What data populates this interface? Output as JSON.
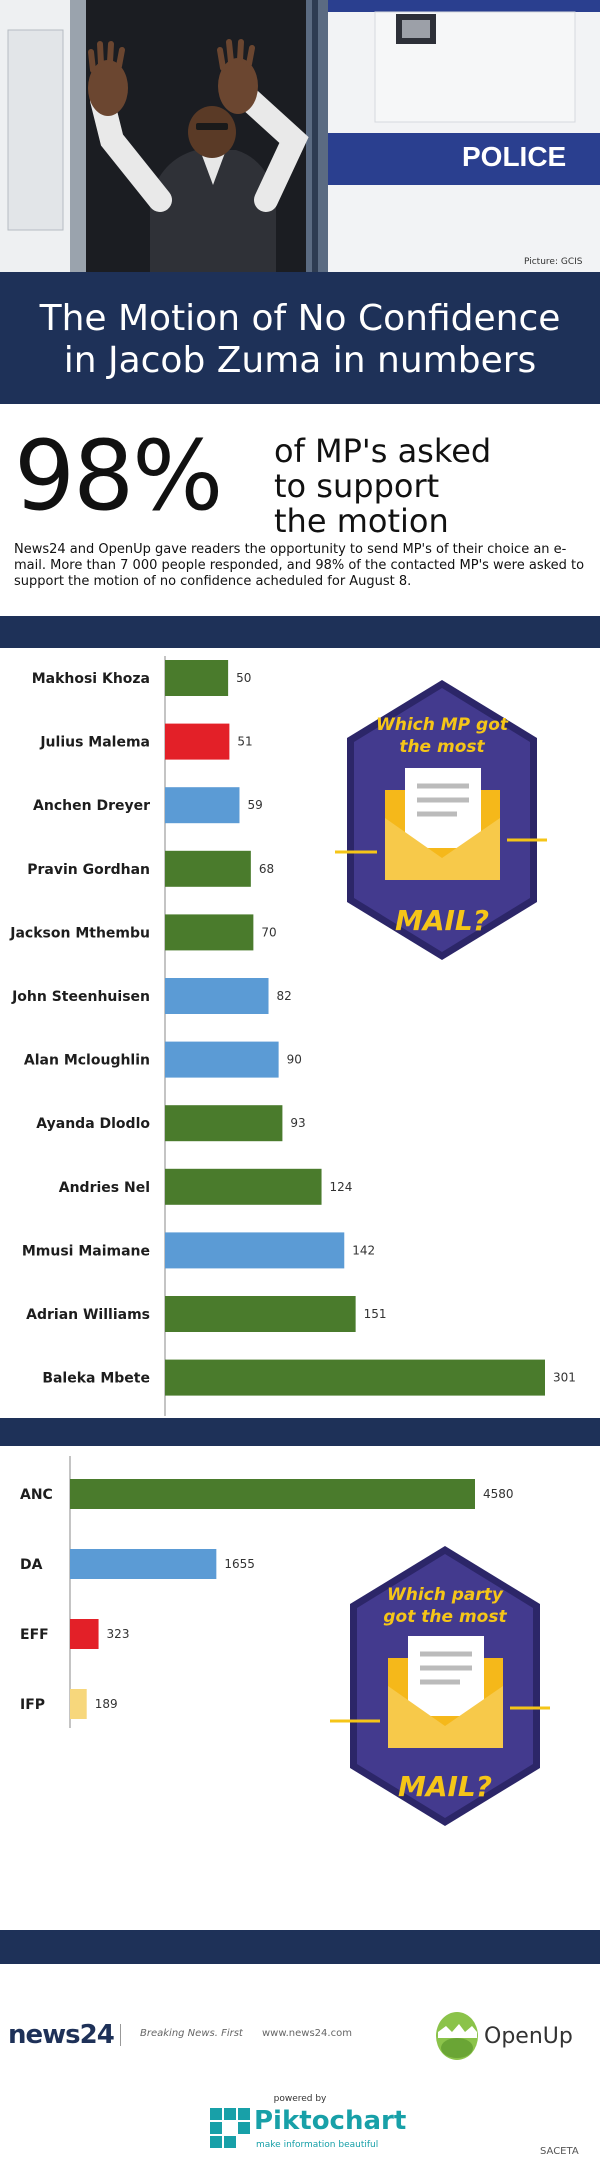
{
  "hero": {
    "police_text": "POLICE",
    "photo_credit": "Picture: GCIS"
  },
  "title": {
    "line1": "The Motion of No Confidence",
    "line2": "in Jacob Zuma in numbers"
  },
  "stat": {
    "big": "98%",
    "side": [
      "of MP's asked",
      "to support",
      "the motion"
    ],
    "body": [
      "News24 and OpenUp gave readers the opportunity to send MP's of their choice an e-",
      "mail. More than 7 000 people responded, and 98% of the contacted MP's were asked to",
      "support the motion of no confidence acheduled for August 8."
    ]
  },
  "badge1": {
    "lines": [
      "Which MP got",
      "the most"
    ],
    "big": "MAIL?"
  },
  "badge2": {
    "lines": [
      "Which party",
      "got the most"
    ],
    "big": "MAIL?"
  },
  "colors": {
    "anc": "#4a7b2c",
    "da": "#5b9bd5",
    "eff": "#e32028",
    "ifp": "#f7d77c",
    "navy": "#1e3158",
    "badge": "#433a8e"
  },
  "chart_data": [
    {
      "type": "bar",
      "orientation": "horizontal",
      "categories": [
        "Makhosi Khoza",
        "Julius Malema",
        "Anchen Dreyer",
        "Pravin Gordhan",
        "Jackson Mthembu",
        "John Steenhuisen",
        "Alan Mcloughlin",
        "Ayanda Dlodlo",
        "Andries Nel",
        "Mmusi Maimane",
        "Adrian Williams",
        "Baleka Mbete"
      ],
      "values": [
        50,
        51,
        59,
        68,
        70,
        82,
        90,
        93,
        124,
        142,
        151,
        301
      ],
      "value_labels": [
        "50",
        "51",
        "59",
        "68",
        "70",
        "82",
        "90",
        "93",
        "124",
        "142",
        "151",
        "301"
      ],
      "bar_colors": [
        "#4a7b2c",
        "#e32028",
        "#5b9bd5",
        "#4a7b2c",
        "#4a7b2c",
        "#5b9bd5",
        "#5b9bd5",
        "#4a7b2c",
        "#4a7b2c",
        "#5b9bd5",
        "#4a7b2c",
        "#4a7b2c"
      ],
      "xlim": [
        0,
        301
      ]
    },
    {
      "type": "bar",
      "orientation": "horizontal",
      "categories": [
        "ANC",
        "DA",
        "EFF",
        "IFP"
      ],
      "values": [
        4580,
        1655,
        323,
        189
      ],
      "value_labels": [
        "4580",
        "1655",
        "323",
        "189"
      ],
      "bar_colors": [
        "#4a7b2c",
        "#5b9bd5",
        "#e32028",
        "#f7d77c"
      ],
      "xlim": [
        0,
        4580
      ]
    }
  ],
  "footer": {
    "news24": "news24",
    "tagline": "Breaking News. First",
    "url": "www.news24.com",
    "openup": "OpenUp",
    "powered": "powered by",
    "pikto": "Piktochart",
    "pikto_sub": "make information beautiful",
    "watermark": "SACETA"
  }
}
